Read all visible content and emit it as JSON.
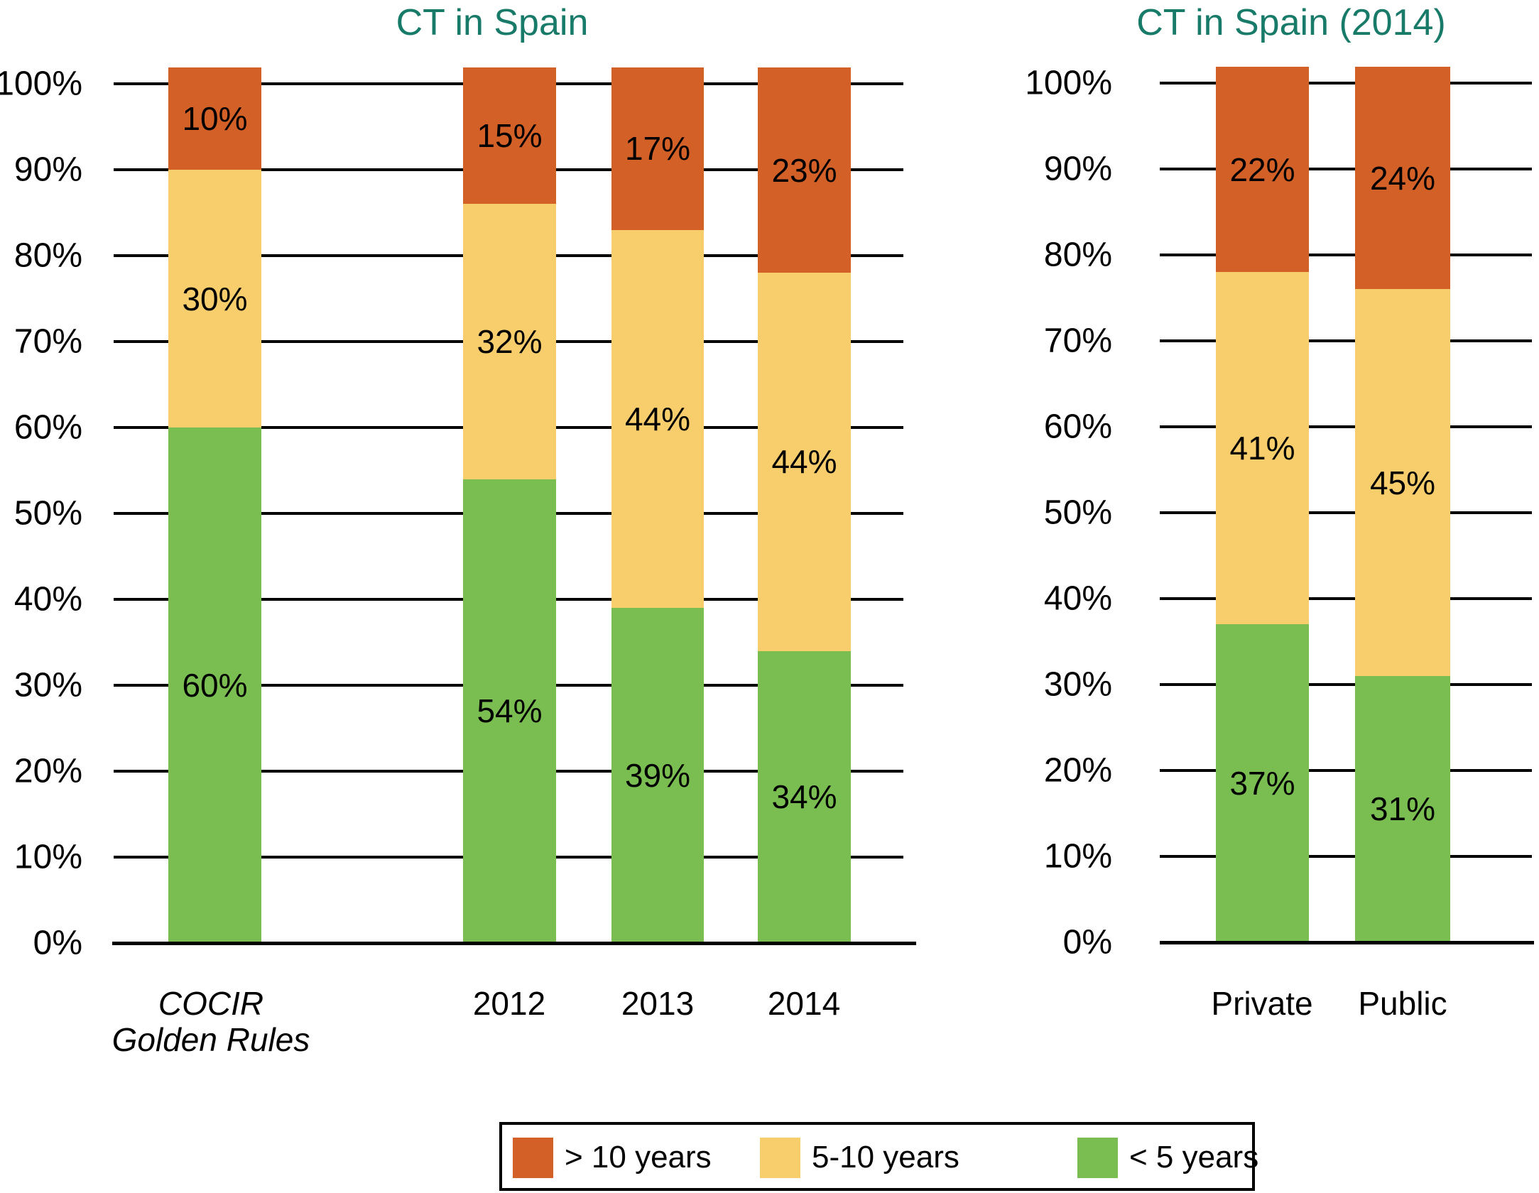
{
  "page": {
    "background": "#FFFFFF"
  },
  "colors": {
    "title_text": "#187A68",
    "axis_line": "#000000",
    "label_text": "#000000",
    "legend_border": "#000000",
    "series_gt10": "#D26027",
    "series_5to10": "#F8CE6D",
    "series_lt5": "#7ABE52"
  },
  "legend": {
    "items": [
      {
        "label": "> 10 years",
        "color": "#D26027"
      },
      {
        "label": "5-10 years",
        "color": "#F8CE6D"
      },
      {
        "label": "< 5 years",
        "color": "#7ABE52"
      }
    ]
  },
  "chart_data": [
    {
      "type": "bar",
      "stacked": true,
      "title": "CT in Spain",
      "categories": [
        {
          "label": "COCIR\nGolden Rules",
          "italic": true
        },
        {
          "label": "2012",
          "italic": false
        },
        {
          "label": "2013",
          "italic": false
        },
        {
          "label": "2014",
          "italic": false
        }
      ],
      "series": [
        {
          "name": "< 5 years",
          "color": "#7ABE52",
          "values": [
            60,
            54,
            39,
            34
          ]
        },
        {
          "name": "5-10 years",
          "color": "#F8CE6D",
          "values": [
            30,
            32,
            44,
            44
          ]
        },
        {
          "name": "> 10 years",
          "color": "#D26027",
          "values": [
            10,
            15,
            17,
            23
          ]
        }
      ],
      "yticks": [
        "0%",
        "10%",
        "20%",
        "30%",
        "40%",
        "50%",
        "60%",
        "70%",
        "80%",
        "90%",
        "100%"
      ],
      "ylim": [
        0,
        100
      ],
      "grid": true,
      "value_labels": "percent",
      "legend_position": "bottom"
    },
    {
      "type": "bar",
      "stacked": true,
      "title": "CT in Spain (2014)",
      "categories": [
        {
          "label": "Private",
          "italic": false
        },
        {
          "label": "Public",
          "italic": false
        }
      ],
      "series": [
        {
          "name": "< 5 years",
          "color": "#7ABE52",
          "values": [
            37,
            31
          ]
        },
        {
          "name": "5-10 years",
          "color": "#F8CE6D",
          "values": [
            41,
            45
          ]
        },
        {
          "name": "> 10 years",
          "color": "#D26027",
          "values": [
            22,
            24
          ]
        }
      ],
      "yticks": [
        "0%",
        "10%",
        "20%",
        "30%",
        "40%",
        "50%",
        "60%",
        "70%",
        "80%",
        "90%",
        "100%"
      ],
      "ylim": [
        0,
        100
      ],
      "grid": true,
      "value_labels": "percent",
      "legend_position": "bottom"
    }
  ]
}
